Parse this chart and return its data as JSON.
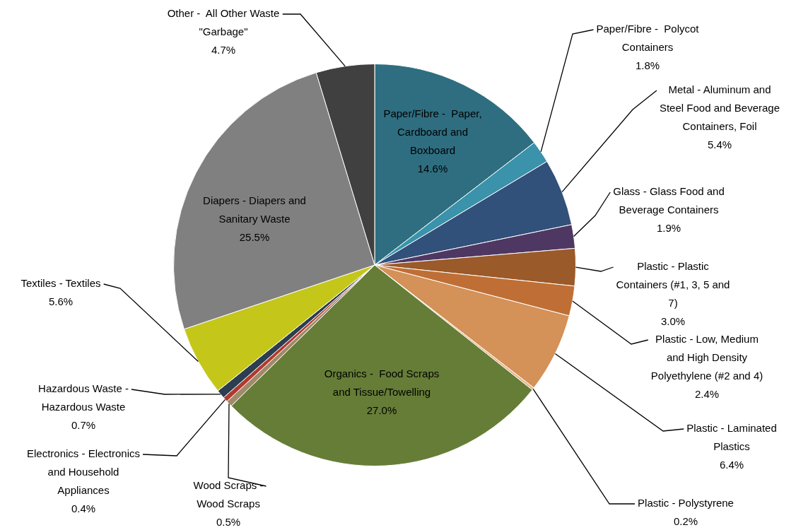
{
  "chart_data": {
    "type": "pie",
    "categories": [
      "Paper/Fibre -  Paper, Cardboard and Boxboard",
      "Paper/Fibre -  Polycot Containers",
      "Metal - Aluminum and Steel Food and Beverage Containers, Foil",
      "Glass - Glass Food and Beverage Containers",
      "Plastic - Plastic Containers (#1, 3, 5 and 7)",
      "Plastic - Low, Medium and High Density Polyethylene (#2 and 4)",
      "Plastic - Laminated Plastics",
      "Plastic - Polystyrene",
      "Organics -  Food Scraps and Tissue/Towelling",
      "Wood Scraps - Wood Scraps",
      "Electronics - Electronics and Household Appliances",
      "Hazardous Waste - Hazardous Waste",
      "Textiles - Textiles",
      "Diapers - Diapers and Sanitary Waste",
      "Other -  All Other Waste \"Garbage\""
    ],
    "values": [
      14.6,
      1.8,
      5.4,
      1.9,
      3.0,
      2.4,
      6.4,
      0.2,
      27.0,
      0.5,
      0.4,
      0.7,
      5.6,
      25.5,
      4.7
    ],
    "value_labels": [
      "14.6%",
      "1.8%",
      "5.4%",
      "1.9%",
      "3.0%",
      "2.4%",
      "6.4%",
      "0.2%",
      "27.0%",
      "0.5%",
      "0.4%",
      "0.7%",
      "5.6%",
      "25.5%",
      "4.7%"
    ],
    "colors": [
      "#2e6e80",
      "#3a93aa",
      "#31507a",
      "#4e3863",
      "#9a5a2a",
      "#bf6f35",
      "#d49158",
      "#e8b888",
      "#667d37",
      "#a08a6a",
      "#b03a2e",
      "#2c3e50",
      "#c5c61a",
      "#808080",
      "#404040"
    ],
    "legend": false
  }
}
